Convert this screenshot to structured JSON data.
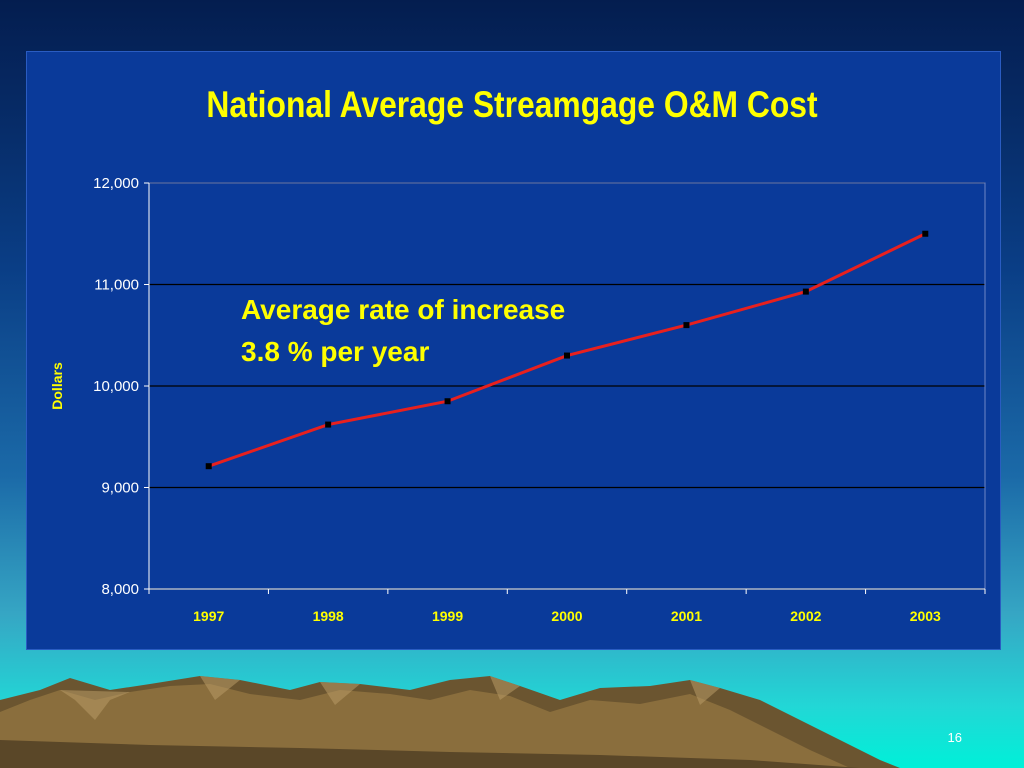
{
  "slide": {
    "page_number": "16",
    "colors": {
      "title": "#ffff00",
      "panel": "#0a3a9a",
      "line": "#e8201e",
      "marker": "#000000",
      "axis_text": "#ffffff",
      "category_text": "#ffff00"
    }
  },
  "chart_data": {
    "type": "line",
    "title": "National Average Streamgage O&M Cost",
    "xlabel": "",
    "ylabel": "Dollars",
    "categories": [
      "1997",
      "1998",
      "1999",
      "2000",
      "2001",
      "2002",
      "2003"
    ],
    "series": [
      {
        "values": [
          9210,
          9620,
          9850,
          10300,
          10600,
          10930,
          11500
        ]
      }
    ],
    "ylim": [
      8000,
      12000
    ],
    "yticks": [
      8000,
      9000,
      10000,
      11000,
      12000
    ],
    "ytick_labels": [
      "8,000",
      "9,000",
      "10,000",
      "11,000",
      "12,000"
    ],
    "grid": true,
    "legend": "none",
    "annotation": {
      "line1": "Average rate of increase",
      "line2": "3.8 % per year"
    }
  }
}
